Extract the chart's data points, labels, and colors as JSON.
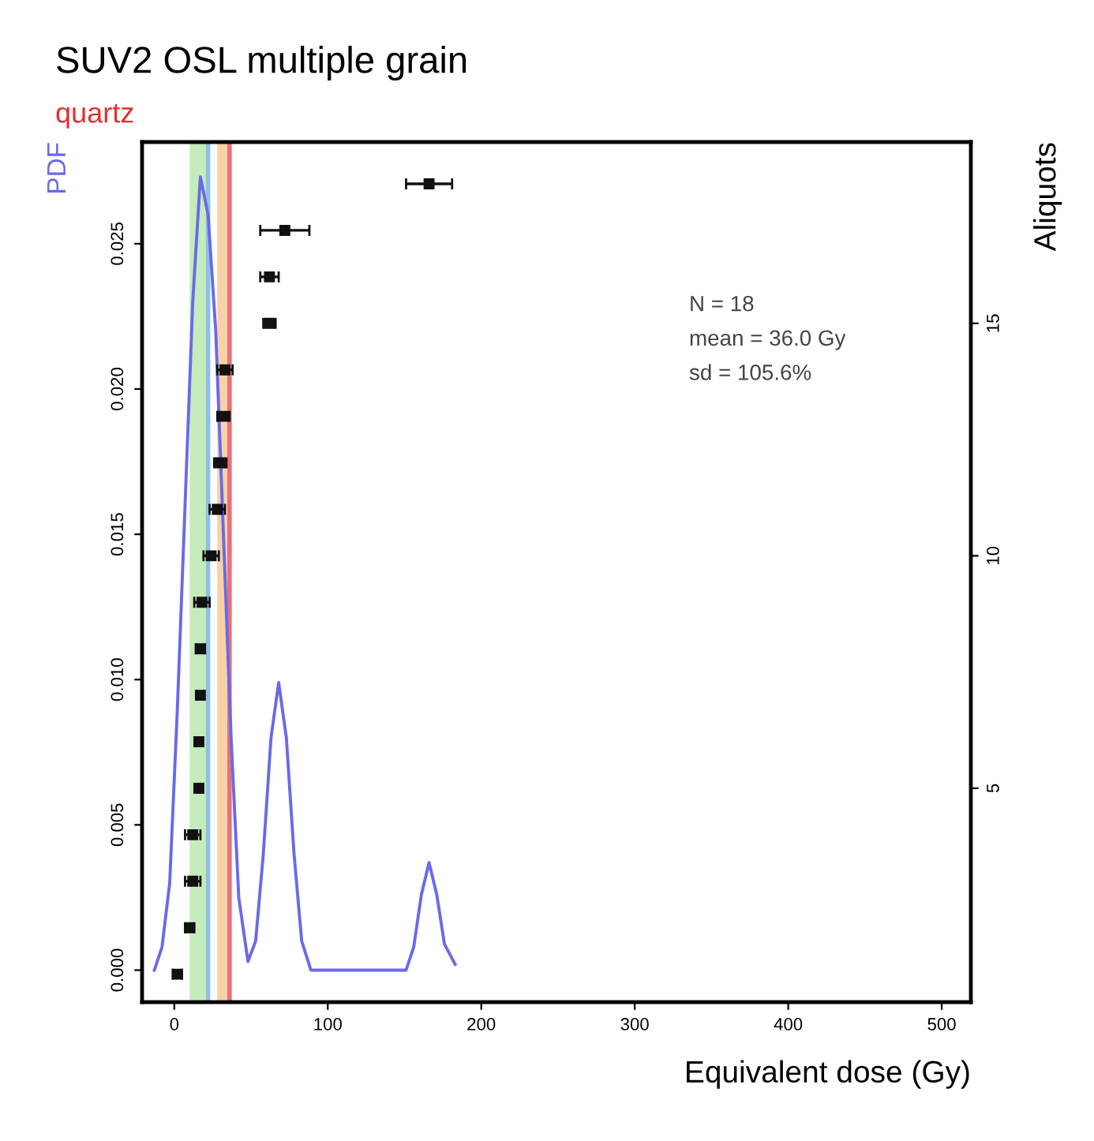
{
  "chart_data": {
    "type": "line",
    "title": "SUV2 OSL multiple grain",
    "subtitle": "quartz",
    "xlabel": "Equivalent dose (Gy)",
    "ylabel": "PDF",
    "y2label": "Aliquots",
    "annotations": [
      "N = 18",
      "mean = 36.0 Gy",
      "sd = 105.6%"
    ],
    "series": [
      {
        "color": "#6a6ae8",
        "x": [
          -13,
          -8,
          -3,
          2,
          7,
          12,
          17,
          22,
          27,
          32,
          37,
          42,
          48,
          53,
          58,
          63,
          68,
          73,
          78,
          83,
          89,
          100,
          120,
          140,
          151,
          156,
          161,
          166,
          171,
          176,
          183
        ],
        "values": [
          0.0,
          0.0008,
          0.003,
          0.009,
          0.016,
          0.023,
          0.0273,
          0.026,
          0.022,
          0.015,
          0.008,
          0.0025,
          0.0003,
          0.001,
          0.004,
          0.008,
          0.0099,
          0.008,
          0.004,
          0.001,
          0.0,
          0.0,
          0.0,
          0.0,
          0.0,
          0.0008,
          0.0026,
          0.0037,
          0.0026,
          0.0009,
          0.0002
        ]
      },
      {
        "type": "scatter",
        "axis": "y2",
        "color": "#111111",
        "marker": "square",
        "x": [
          2,
          10,
          12,
          12,
          16,
          16,
          17,
          17,
          18,
          24,
          28,
          30,
          32,
          33,
          62,
          62,
          72,
          166
        ],
        "values": [
          1,
          2,
          3,
          4,
          5,
          6,
          7,
          8,
          9,
          10,
          11,
          12,
          13,
          14,
          15,
          16,
          17,
          18
        ],
        "xerrors": [
          3,
          3,
          5,
          5,
          2,
          2,
          2,
          3,
          5,
          5,
          5,
          4,
          4,
          5,
          4,
          6,
          16,
          15
        ]
      }
    ],
    "bands": [
      {
        "axis": "x",
        "from": 10,
        "to": 21,
        "color": "#c4ecbc"
      },
      {
        "axis": "x",
        "from": 28,
        "to": 35,
        "color": "#f7d2a6"
      }
    ],
    "ref_lines": [
      {
        "axis": "x",
        "value": 22,
        "color": "#8fbfe8"
      },
      {
        "axis": "x",
        "value": 36,
        "color": "#e8707a"
      }
    ],
    "xlim": [
      -21,
      519
    ],
    "xticks": [
      0,
      100,
      200,
      300,
      400,
      500
    ],
    "ylim": [
      -0.0011,
      0.0285
    ],
    "yticks": [
      {
        "value": 0,
        "label": "0.000"
      },
      {
        "value": 0.005,
        "label": "0.005"
      },
      {
        "value": 0.01,
        "label": "0.010"
      },
      {
        "value": 0.015,
        "label": "0.015"
      },
      {
        "value": 0.02,
        "label": "0.020"
      },
      {
        "value": 0.025,
        "label": "0.025"
      }
    ],
    "y2lim": [
      0.4,
      18.9
    ],
    "y2ticks": [
      5,
      10,
      15
    ],
    "grid": false,
    "legend": false
  }
}
